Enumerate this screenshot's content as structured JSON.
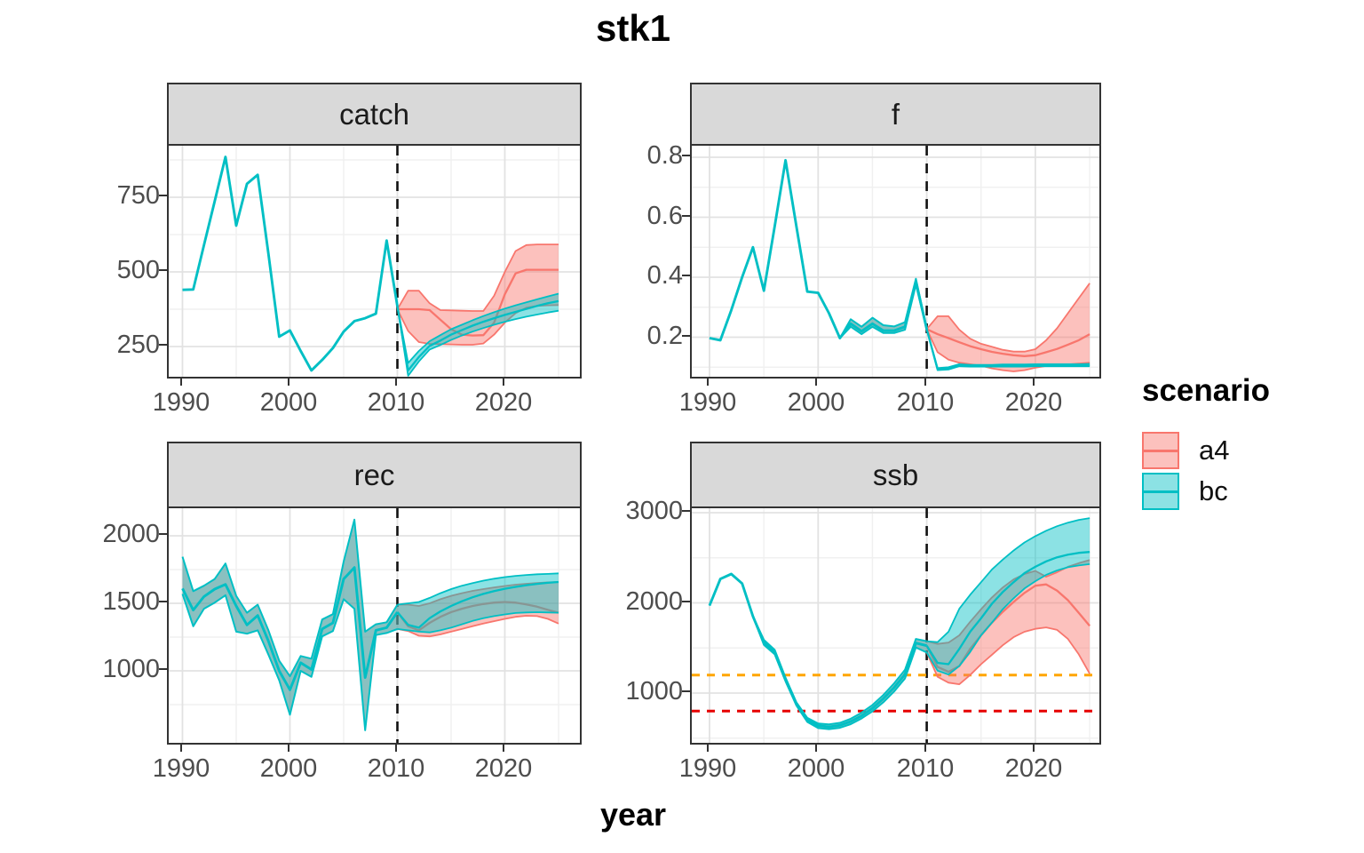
{
  "title": "stk1",
  "axis": {
    "x_label": "year"
  },
  "legend": {
    "title": "scenario",
    "items": [
      {
        "label": "a4",
        "color": "#F8766D"
      },
      {
        "label": "bc",
        "color": "#00BFC4"
      }
    ]
  },
  "colors": {
    "a4": "#F8766D",
    "bc": "#00BFC4",
    "history": "#00BFC4",
    "vline": "#111111",
    "hline_orange": "#FFA500",
    "hline_red": "#E60000",
    "strip_fill": "#D9D9D9",
    "panel_border": "#333333",
    "grid_major": "#E2E2E2",
    "grid_minor": "#F0F0F0",
    "axis_text": "#4D4D4D",
    "band_opacity": 0.45
  },
  "chart_data": [
    {
      "type": "line",
      "title": "catch",
      "xlabel": "year",
      "x_ticks": [
        1990,
        2000,
        2010,
        2020
      ],
      "x_tick_labels": [
        "1990",
        "2000",
        "2010",
        "2020"
      ],
      "x_minor": [
        1995,
        2005,
        2015,
        2025
      ],
      "y_ticks": [
        750,
        500,
        250
      ],
      "y_tick_labels": [
        "750",
        "500",
        "250"
      ],
      "y_minor": [
        375,
        625,
        875
      ],
      "xlim": [
        1988.7,
        2027.3
      ],
      "ylim": [
        137,
        922
      ],
      "grid": true,
      "vline": 2010,
      "hlines": [],
      "history": {
        "years": [
          1990,
          1991,
          1992,
          1993,
          1994,
          1995,
          1996,
          1997,
          1998,
          1999,
          2000,
          2001,
          2002,
          2003,
          2004,
          2005,
          2006,
          2007,
          2008,
          2009,
          2010
        ],
        "median": [
          440,
          441,
          590,
          737,
          885,
          655,
          795,
          825,
          560,
          283,
          304,
          235,
          170,
          205,
          245,
          300,
          335,
          345,
          360,
          605,
          385
        ]
      },
      "scenarios": {
        "a4": {
          "years": [
            2010,
            2011,
            2012,
            2013,
            2014,
            2015,
            2016,
            2017,
            2018,
            2019,
            2020,
            2021,
            2022,
            2023,
            2024,
            2025
          ],
          "median": [
            375,
            375,
            375,
            372,
            340,
            308,
            290,
            287,
            288,
            330,
            425,
            495,
            507,
            507,
            507,
            507
          ],
          "lower": [
            375,
            302,
            265,
            259,
            258,
            257,
            256,
            256,
            260,
            290,
            330,
            362,
            380,
            386,
            388,
            389
          ],
          "upper": [
            375,
            437,
            437,
            395,
            372,
            371,
            370,
            369,
            369,
            420,
            500,
            570,
            590,
            592,
            592,
            592
          ]
        },
        "bc": {
          "years": [
            2010,
            2011,
            2012,
            2013,
            2014,
            2015,
            2016,
            2017,
            2018,
            2019,
            2020,
            2021,
            2022,
            2023,
            2024,
            2025
          ],
          "median": [
            385,
            170,
            215,
            252,
            270,
            290,
            305,
            320,
            333,
            345,
            356,
            366,
            376,
            386,
            395,
            402
          ],
          "lower": [
            385,
            152,
            200,
            240,
            255,
            272,
            287,
            300,
            312,
            323,
            333,
            342,
            350,
            357,
            364,
            370
          ],
          "upper": [
            385,
            195,
            235,
            268,
            288,
            308,
            323,
            338,
            352,
            365,
            377,
            388,
            398,
            408,
            418,
            427
          ]
        }
      }
    },
    {
      "type": "line",
      "title": "f",
      "xlabel": "year",
      "x_ticks": [
        1990,
        2000,
        2010,
        2020
      ],
      "x_tick_labels": [
        "1990",
        "2000",
        "2010",
        "2020"
      ],
      "x_minor": [
        1995,
        2005,
        2015,
        2025
      ],
      "y_ticks": [
        0.8,
        0.6,
        0.4,
        0.2
      ],
      "y_tick_labels": [
        "0.8",
        "0.6",
        "0.4",
        "0.2"
      ],
      "y_minor": [
        0.1,
        0.3,
        0.5,
        0.7
      ],
      "xlim": [
        1988.4,
        2026.2
      ],
      "ylim": [
        0.056,
        0.839
      ],
      "grid": true,
      "vline": 2010,
      "hlines": [],
      "history": {
        "years": [
          1990,
          1991,
          1992,
          1993,
          1994,
          1995,
          1996,
          1997,
          1998,
          1999,
          2000,
          2001,
          2002,
          2003,
          2004,
          2005,
          2006,
          2007,
          2008,
          2009,
          2010
        ],
        "median": [
          0.197,
          0.19,
          0.29,
          0.4,
          0.5,
          0.355,
          0.57,
          0.79,
          0.57,
          0.352,
          0.348,
          0.28,
          0.197,
          0.245,
          0.22,
          0.245,
          0.222,
          0.222,
          0.235,
          0.385,
          0.227
        ],
        "lower": [
          0.197,
          0.19,
          0.29,
          0.4,
          0.5,
          0.355,
          0.57,
          0.79,
          0.57,
          0.352,
          0.348,
          0.28,
          0.197,
          0.235,
          0.21,
          0.235,
          0.214,
          0.214,
          0.225,
          0.375,
          0.225
        ],
        "upper": [
          0.197,
          0.19,
          0.29,
          0.4,
          0.5,
          0.355,
          0.57,
          0.79,
          0.57,
          0.352,
          0.348,
          0.28,
          0.197,
          0.26,
          0.235,
          0.265,
          0.24,
          0.236,
          0.25,
          0.395,
          0.23
        ]
      },
      "scenarios": {
        "a4": {
          "years": [
            2010,
            2011,
            2012,
            2013,
            2014,
            2015,
            2016,
            2017,
            2018,
            2019,
            2020,
            2021,
            2022,
            2023,
            2024,
            2025
          ],
          "median": [
            0.227,
            0.21,
            0.197,
            0.183,
            0.17,
            0.16,
            0.151,
            0.145,
            0.14,
            0.137,
            0.14,
            0.15,
            0.161,
            0.175,
            0.19,
            0.21
          ],
          "lower": [
            0.227,
            0.15,
            0.125,
            0.115,
            0.11,
            0.105,
            0.096,
            0.09,
            0.086,
            0.09,
            0.098,
            0.104,
            0.107,
            0.109,
            0.112,
            0.115
          ],
          "upper": [
            0.227,
            0.27,
            0.27,
            0.225,
            0.195,
            0.178,
            0.168,
            0.158,
            0.152,
            0.152,
            0.16,
            0.19,
            0.23,
            0.28,
            0.33,
            0.38
          ]
        },
        "bc": {
          "years": [
            2010,
            2011,
            2012,
            2013,
            2014,
            2015,
            2016,
            2017,
            2018,
            2019,
            2020,
            2021,
            2022,
            2023,
            2024,
            2025
          ],
          "median": [
            0.227,
            0.093,
            0.095,
            0.106,
            0.105,
            0.105,
            0.105,
            0.105,
            0.105,
            0.106,
            0.106,
            0.106,
            0.106,
            0.106,
            0.107,
            0.107
          ],
          "lower": [
            0.227,
            0.09,
            0.092,
            0.103,
            0.102,
            0.102,
            0.102,
            0.102,
            0.102,
            0.102,
            0.103,
            0.103,
            0.103,
            0.103,
            0.103,
            0.103
          ],
          "upper": [
            0.227,
            0.097,
            0.1,
            0.11,
            0.108,
            0.108,
            0.108,
            0.109,
            0.109,
            0.109,
            0.11,
            0.11,
            0.11,
            0.11,
            0.11,
            0.111
          ]
        }
      }
    },
    {
      "type": "line",
      "title": "rec",
      "xlabel": "year",
      "x_ticks": [
        1990,
        2000,
        2010,
        2020
      ],
      "x_tick_labels": [
        "1990",
        "2000",
        "2010",
        "2020"
      ],
      "x_minor": [
        1995,
        2005,
        2015,
        2025
      ],
      "y_ticks": [
        2000,
        1500,
        1000
      ],
      "y_tick_labels": [
        "2000",
        "1500",
        "1000"
      ],
      "y_minor": [
        750,
        1250,
        1750
      ],
      "xlim": [
        1988.7,
        2027.3
      ],
      "ylim": [
        441,
        2204
      ],
      "grid": true,
      "vline": 2010,
      "hlines": [],
      "history": {
        "years": [
          1990,
          1991,
          1992,
          1993,
          1994,
          1995,
          1996,
          1997,
          1998,
          1999,
          2000,
          2001,
          2002,
          2003,
          2004,
          2005,
          2006,
          2007,
          2008,
          2009,
          2010
        ],
        "median": [
          1610,
          1450,
          1550,
          1605,
          1640,
          1480,
          1340,
          1410,
          1220,
          1000,
          860,
          1060,
          1010,
          1310,
          1355,
          1680,
          1765,
          950,
          1300,
          1320,
          1435
        ],
        "lower": [
          1570,
          1330,
          1460,
          1505,
          1560,
          1290,
          1275,
          1300,
          1120,
          930,
          675,
          1000,
          955,
          1255,
          1295,
          1530,
          1460,
          560,
          1265,
          1280,
          1310
        ],
        "upper": [
          1845,
          1590,
          1630,
          1680,
          1795,
          1555,
          1430,
          1490,
          1300,
          1075,
          960,
          1110,
          1090,
          1380,
          1420,
          1810,
          2120,
          1290,
          1345,
          1360,
          1490
        ]
      },
      "scenarios": {
        "a4": {
          "years": [
            2010,
            2011,
            2012,
            2013,
            2014,
            2015,
            2016,
            2017,
            2018,
            2019,
            2020,
            2021,
            2022,
            2023,
            2024,
            2025
          ],
          "median": [
            1435,
            1330,
            1300,
            1355,
            1400,
            1435,
            1460,
            1480,
            1495,
            1505,
            1510,
            1505,
            1492,
            1475,
            1452,
            1430
          ],
          "lower": [
            1310,
            1295,
            1260,
            1255,
            1270,
            1290,
            1310,
            1330,
            1350,
            1368,
            1385,
            1400,
            1408,
            1405,
            1385,
            1350
          ],
          "upper": [
            1490,
            1490,
            1480,
            1500,
            1530,
            1555,
            1575,
            1592,
            1605,
            1618,
            1628,
            1638,
            1645,
            1650,
            1655,
            1658
          ]
        },
        "bc": {
          "years": [
            2010,
            2011,
            2012,
            2013,
            2014,
            2015,
            2016,
            2017,
            2018,
            2019,
            2020,
            2021,
            2022,
            2023,
            2024,
            2025
          ],
          "median": [
            1435,
            1340,
            1320,
            1390,
            1440,
            1480,
            1515,
            1545,
            1570,
            1590,
            1608,
            1622,
            1634,
            1644,
            1652,
            1658
          ],
          "lower": [
            1310,
            1300,
            1290,
            1285,
            1300,
            1320,
            1345,
            1370,
            1390,
            1405,
            1418,
            1428,
            1432,
            1434,
            1432,
            1430
          ],
          "upper": [
            1490,
            1500,
            1510,
            1540,
            1575,
            1605,
            1630,
            1650,
            1668,
            1682,
            1694,
            1703,
            1710,
            1715,
            1718,
            1722
          ]
        }
      }
    },
    {
      "type": "line",
      "title": "ssb",
      "xlabel": "year",
      "x_ticks": [
        1990,
        2000,
        2010,
        2020
      ],
      "x_tick_labels": [
        "1990",
        "2000",
        "2010",
        "2020"
      ],
      "x_minor": [
        1995,
        2005,
        2015,
        2025
      ],
      "y_ticks": [
        3000,
        2000,
        1000
      ],
      "y_tick_labels": [
        "3000",
        "2000",
        "1000"
      ],
      "y_minor": [
        500,
        1500,
        2500
      ],
      "xlim": [
        1988.4,
        2026.2
      ],
      "ylim": [
        409,
        3049
      ],
      "grid": true,
      "vline": 2010,
      "hlines": [
        {
          "value": 1200,
          "color": "#FFA500",
          "name": "reference-line-orange"
        },
        {
          "value": 800,
          "color": "#E60000",
          "name": "reference-line-red"
        }
      ],
      "history": {
        "years": [
          1990,
          1991,
          1992,
          1993,
          1994,
          1995,
          1996,
          1997,
          1998,
          1999,
          2000,
          2001,
          2002,
          2003,
          2004,
          2005,
          2006,
          2007,
          2008,
          2009,
          2010
        ],
        "median": [
          1970,
          2265,
          2320,
          2215,
          1850,
          1560,
          1455,
          1150,
          880,
          700,
          638,
          625,
          642,
          685,
          748,
          832,
          938,
          1062,
          1208,
          1555,
          1525
        ],
        "lower": [
          1970,
          2265,
          2320,
          2215,
          1850,
          1535,
          1430,
          1130,
          862,
          680,
          612,
          600,
          615,
          655,
          718,
          798,
          898,
          1018,
          1162,
          1505,
          1450
        ],
        "upper": [
          1970,
          2265,
          2320,
          2215,
          1850,
          1590,
          1480,
          1170,
          898,
          725,
          662,
          652,
          670,
          715,
          782,
          868,
          978,
          1108,
          1258,
          1600,
          1575
        ]
      },
      "scenarios": {
        "a4": {
          "years": [
            2010,
            2011,
            2012,
            2013,
            2014,
            2015,
            2016,
            2017,
            2018,
            2019,
            2020,
            2021,
            2022,
            2023,
            2024,
            2025
          ],
          "median": [
            1525,
            1290,
            1235,
            1300,
            1490,
            1640,
            1780,
            1900,
            2010,
            2110,
            2190,
            2205,
            2135,
            2030,
            1890,
            1745
          ],
          "lower": [
            1450,
            1180,
            1115,
            1098,
            1200,
            1320,
            1425,
            1530,
            1620,
            1680,
            1712,
            1728,
            1700,
            1600,
            1430,
            1215
          ],
          "upper": [
            1575,
            1545,
            1560,
            1640,
            1790,
            1930,
            2060,
            2170,
            2260,
            2320,
            2355,
            2290,
            2340,
            2400,
            2440,
            2475
          ]
        },
        "bc": {
          "years": [
            2010,
            2011,
            2012,
            2013,
            2014,
            2015,
            2016,
            2017,
            2018,
            2019,
            2020,
            2021,
            2022,
            2023,
            2024,
            2025
          ],
          "median": [
            1525,
            1335,
            1320,
            1490,
            1680,
            1830,
            1990,
            2120,
            2230,
            2330,
            2400,
            2460,
            2505,
            2535,
            2555,
            2565
          ],
          "lower": [
            1450,
            1248,
            1205,
            1300,
            1455,
            1640,
            1780,
            1930,
            2050,
            2160,
            2240,
            2310,
            2360,
            2395,
            2415,
            2430
          ],
          "upper": [
            1575,
            1565,
            1680,
            1935,
            2090,
            2230,
            2370,
            2480,
            2580,
            2670,
            2740,
            2800,
            2850,
            2890,
            2920,
            2940
          ]
        }
      }
    }
  ]
}
